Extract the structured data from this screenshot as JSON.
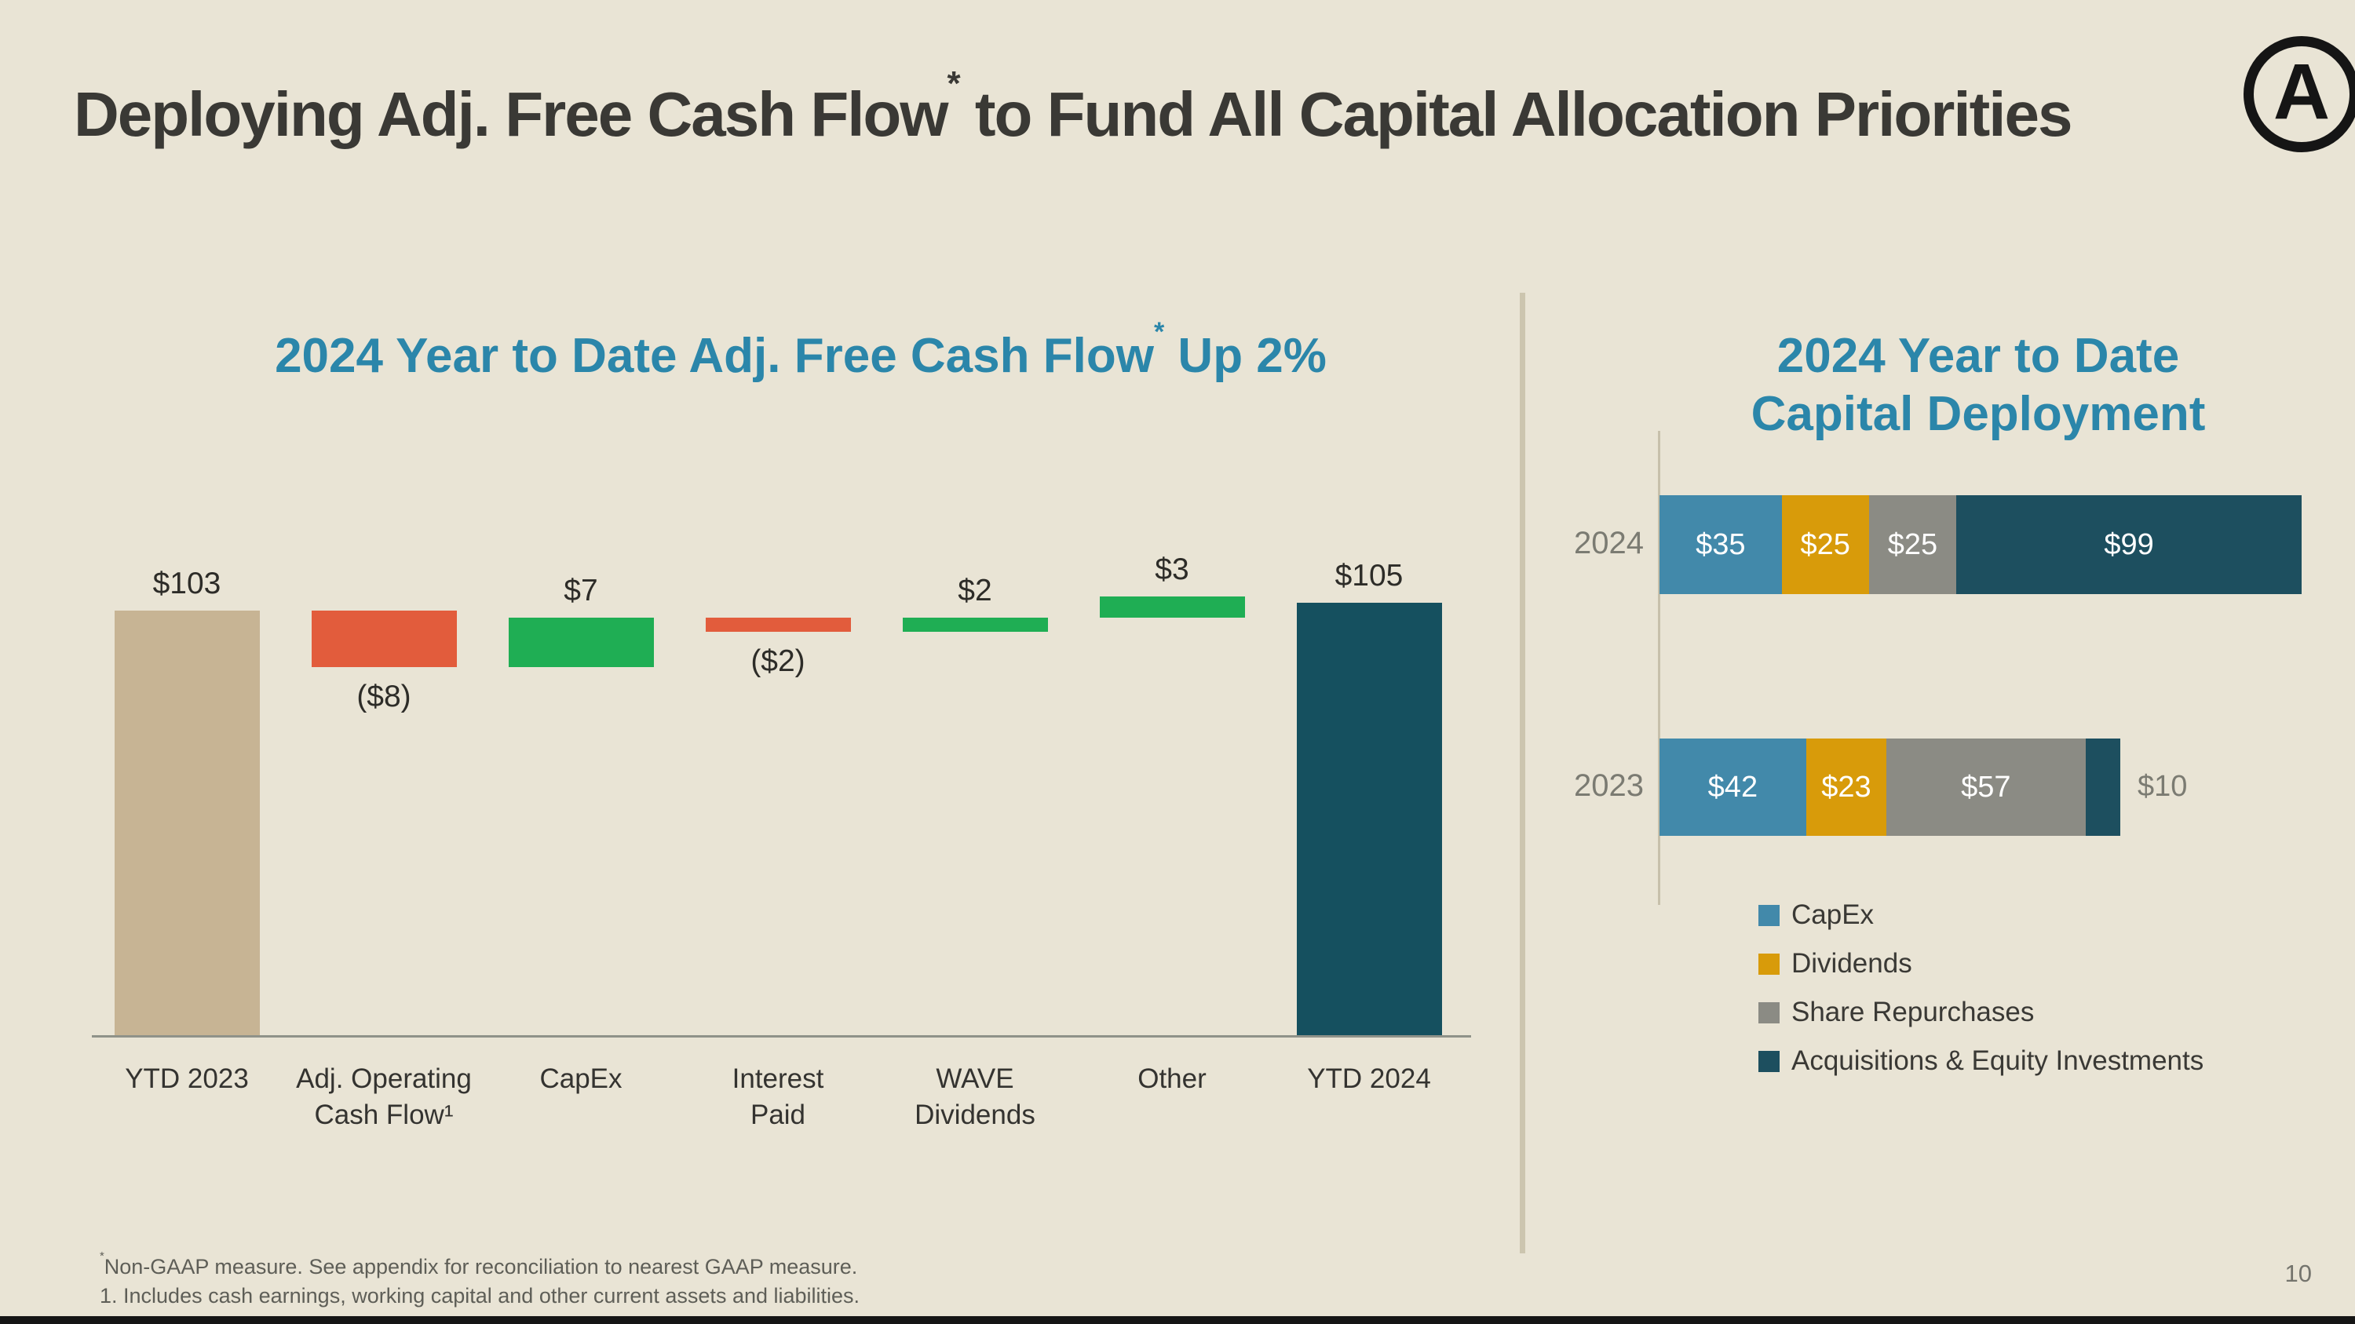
{
  "slide": {
    "background_color": "#e9e4d5",
    "accent_teal": "#2b86aa",
    "title": {
      "main": "Deploying Adj. Free Cash Flow",
      "sup": "*",
      "tail": " to Fund All Capital Allocation Priorities"
    },
    "logo": {
      "letter": "A",
      "tm": "™"
    },
    "page_number": "10"
  },
  "left_chart_title": {
    "main": "2024 Year to Date Adj. Free Cash Flow",
    "sup": "*",
    "tail": " Up 2%"
  },
  "right_chart_title": {
    "line1": "2024 Year to Date",
    "line2": "Capital Deployment"
  },
  "footnotes": {
    "line1_sup": "*",
    "line1_text": "Non-GAAP measure. See appendix for reconciliation to nearest GAAP measure.",
    "line2_text": "1. Includes cash earnings, working capital and other current assets and liabilities."
  },
  "chart_data": [
    {
      "type": "bar",
      "subtype": "waterfall",
      "title": "2024 Year to Date Adj. Free Cash Flow* Up 2%",
      "categories": [
        [
          "YTD 2023"
        ],
        [
          "Adj. Operating",
          "Cash Flow¹"
        ],
        [
          "CapEx"
        ],
        [
          "Interest",
          "Paid"
        ],
        [
          "WAVE",
          "Dividends"
        ],
        [
          "Other"
        ],
        [
          "YTD 2024"
        ]
      ],
      "category_slugs": [
        "ytd-2023",
        "adj-operating-cash-flow",
        "capex",
        "interest-paid",
        "wave-dividends",
        "other",
        "ytd-2024"
      ],
      "values": [
        103,
        -8,
        7,
        -2,
        2,
        3,
        105
      ],
      "bar_kinds": [
        "total",
        "delta",
        "delta",
        "delta",
        "delta",
        "delta",
        "total"
      ],
      "labels": [
        "$103",
        "($8)",
        "$7",
        "($2)",
        "$2",
        "$3",
        "$105"
      ],
      "label_positions": [
        "above",
        "below",
        "above",
        "below",
        "above",
        "above",
        "above"
      ],
      "colors": {
        "start_total": "#c7b494",
        "end_total": "#15505f",
        "positive": "#1fae54",
        "negative": "#e25c3c"
      },
      "ylim": [
        0,
        110
      ],
      "grid": false
    },
    {
      "type": "bar",
      "subtype": "horizontal-stacked",
      "title": "2024 Year to Date Capital Deployment",
      "categories": [
        "2024",
        "2023"
      ],
      "series": [
        {
          "name": "CapEx",
          "color": "#4289aa",
          "values": [
            35,
            42
          ]
        },
        {
          "name": "Dividends",
          "color": "#d89b0a",
          "values": [
            25,
            23
          ]
        },
        {
          "name": "Share Repurchases",
          "color": "#8b8b84",
          "values": [
            25,
            57
          ]
        },
        {
          "name": "Acquisitions & Equity Investments",
          "color": "#1d4f5f",
          "values": [
            99,
            10
          ]
        }
      ],
      "segment_labels": [
        [
          "$35",
          "$25",
          "$25",
          "$99"
        ],
        [
          "$42",
          "$23",
          "$57",
          null
        ]
      ],
      "outside_labels": [
        null,
        "$10"
      ],
      "legend_position": "bottom-left",
      "xlim": [
        0,
        190
      ],
      "grid": false
    }
  ]
}
